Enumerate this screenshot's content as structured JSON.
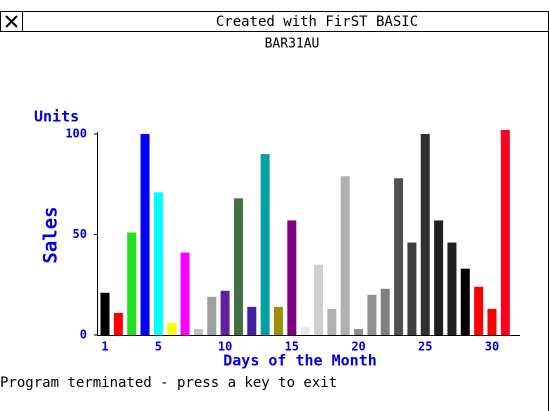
{
  "window_title": "Created with FirST BASIC",
  "chart_data": {
    "type": "bar",
    "title": "BAR31AU",
    "y_unit": "Units",
    "ylabel": "Sales",
    "xlabel": "Days of the Month",
    "x": [
      1,
      2,
      3,
      4,
      5,
      6,
      7,
      8,
      9,
      10,
      11,
      12,
      13,
      14,
      15,
      16,
      17,
      18,
      19,
      20,
      21,
      22,
      23,
      24,
      25,
      26,
      27,
      28,
      29,
      30,
      31
    ],
    "values": [
      21,
      11,
      51,
      100,
      71,
      6,
      41,
      3,
      19,
      22,
      68,
      14,
      90,
      14,
      57,
      4,
      35,
      13,
      79,
      3,
      20,
      23,
      78,
      46,
      100,
      57,
      46,
      33,
      24,
      13,
      102
    ],
    "colors": [
      "#000000",
      "#ff0000",
      "#20e020",
      "#0000ff",
      "#00ffff",
      "#ffff00",
      "#ff00ff",
      "#c0c0c0",
      "#a0a0a0",
      "#6020a0",
      "#407040",
      "#4020a0",
      "#00a0a0",
      "#a09000",
      "#800080",
      "#e8e8e8",
      "#d0d0d0",
      "#b0b0b0",
      "#b0b0b0",
      "#909090",
      "#909090",
      "#808080",
      "#505050",
      "#404040",
      "#303030",
      "#202020",
      "#202020",
      "#000000",
      "#ff0000",
      "#ff0000",
      "#ff0020"
    ],
    "xlim": [
      0.4,
      32.1
    ],
    "xticks": [
      1,
      5,
      10,
      15,
      20,
      25,
      30
    ],
    "ylim": [
      0,
      100
    ],
    "yticks": [
      0,
      50,
      100
    ],
    "grid": false
  },
  "status": "Program terminated - press a key to exit"
}
